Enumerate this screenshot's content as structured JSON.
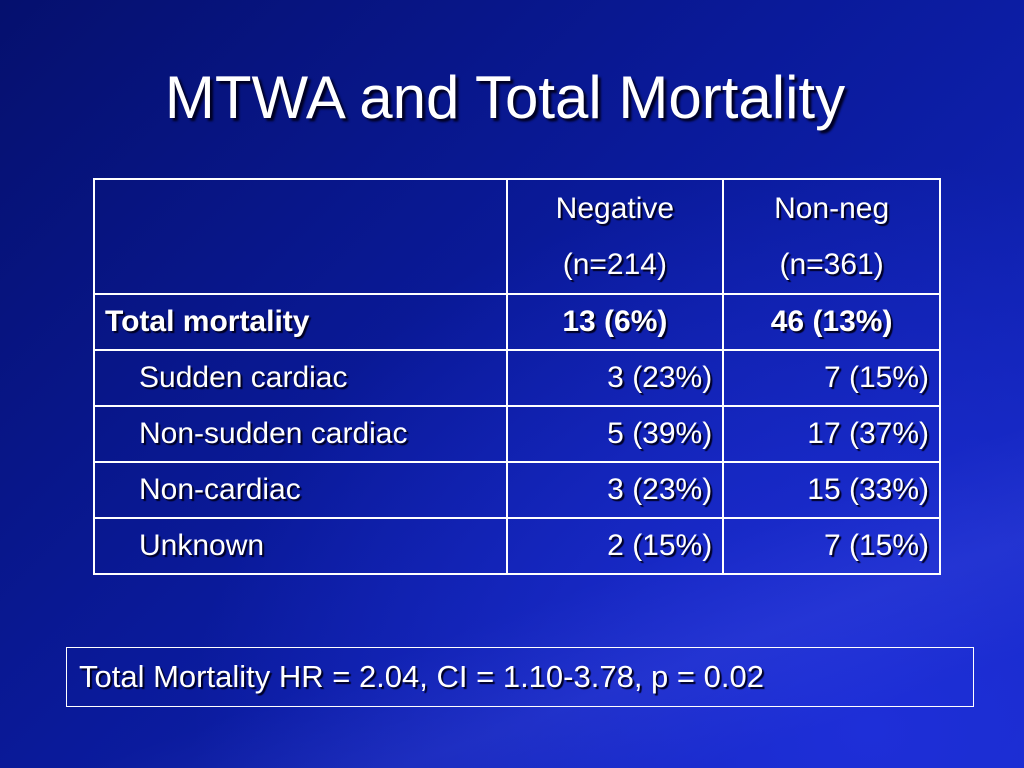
{
  "slide": {
    "title": "MTWA and Total Mortality",
    "table": {
      "header": {
        "col1_line1": "Negative",
        "col1_line2": "(n=214)",
        "col2_line1": "Non-neg",
        "col2_line2": "(n=361)"
      },
      "rows": [
        {
          "label": "Total mortality",
          "negative": "13 (6%)",
          "nonneg": "46 (13%)"
        },
        {
          "label": "Sudden cardiac",
          "negative": "3 (23%)",
          "nonneg": "7 (15%)"
        },
        {
          "label": "Non-sudden cardiac",
          "negative": "5 (39%)",
          "nonneg": "17 (37%)"
        },
        {
          "label": "Non-cardiac",
          "negative": "3 (23%)",
          "nonneg": "15 (33%)"
        },
        {
          "label": "Unknown",
          "negative": "2 (15%)",
          "nonneg": "7 (15%)"
        }
      ]
    },
    "summary": "Total Mortality HR = 2.04, CI = 1.10-3.78, p = 0.02"
  }
}
